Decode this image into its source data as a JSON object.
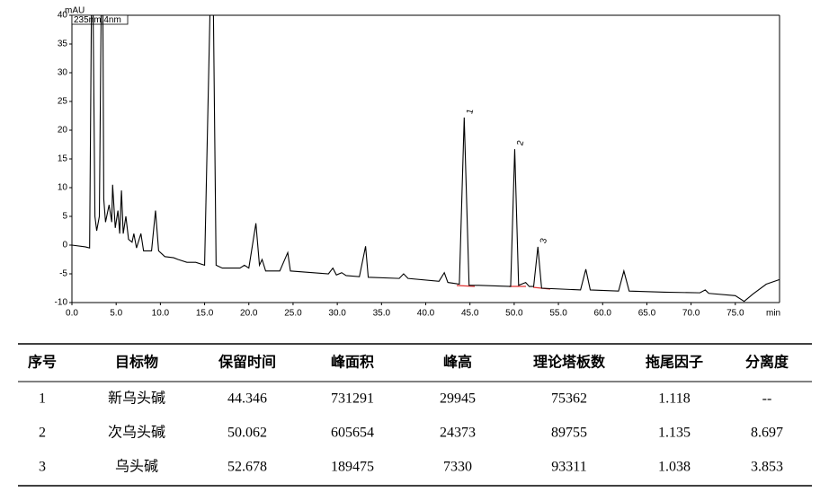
{
  "chart_data": {
    "type": "line",
    "y_label": "mAU",
    "x_label": "min",
    "x": [
      0,
      1.5,
      2.0,
      2.2,
      2.4,
      2.6,
      2.8,
      3.1,
      3.3,
      3.5,
      3.6,
      3.8,
      4.2,
      4.5,
      4.6,
      4.9,
      5.2,
      5.4,
      5.6,
      5.8,
      6.1,
      6.4,
      6.8,
      7.0,
      7.3,
      7.8,
      8.1,
      9.0,
      9.45,
      9.8,
      10.5,
      11.5,
      12.0,
      13.0,
      14.0,
      15.0,
      15.6,
      16.0,
      16.3,
      17.0,
      19.0,
      19.5,
      20.0,
      20.8,
      21.2,
      21.5,
      21.9,
      23.5,
      24.4,
      24.7,
      29.0,
      29.5,
      29.9,
      30.5,
      31.0,
      32.5,
      33.2,
      33.5,
      37.0,
      37.5,
      38.0,
      41.5,
      42.1,
      42.5,
      43.8,
      44.35,
      44.9,
      46.0,
      49.6,
      50.06,
      50.5,
      51.3,
      51.7,
      52.2,
      52.68,
      53.1,
      57.5,
      58.1,
      58.6,
      61.8,
      62.4,
      63.0,
      67.0,
      71.0,
      71.6,
      72.0,
      75.0,
      76.0,
      77.0,
      78.5,
      80.0
    ],
    "series": [
      {
        "name": "235nm,4nm",
        "color": "#000000",
        "values": [
          0,
          -0.3,
          -0.5,
          40,
          40,
          5,
          2.5,
          5,
          40,
          40,
          8,
          4,
          7,
          4,
          10.5,
          3,
          6,
          2,
          9.5,
          2,
          5,
          1,
          0.5,
          2,
          -0.5,
          2,
          -1,
          -1,
          6,
          -1,
          -2,
          -2.2,
          -2.5,
          -3,
          -3,
          -3.5,
          40,
          40,
          -3.5,
          -4,
          -4,
          -3.5,
          -4,
          3.8,
          -3.5,
          -2.5,
          -4.5,
          -4.5,
          -1.3,
          -4.5,
          -5,
          -4,
          -5.2,
          -4.8,
          -5.3,
          -5.5,
          -0.2,
          -5.6,
          -5.8,
          -5,
          -5.8,
          -6.3,
          -4.8,
          -6.5,
          -6.8,
          22.2,
          -7,
          -7,
          -7.2,
          16.7,
          -7,
          -6.5,
          -7.2,
          -7.2,
          -0.3,
          -7.5,
          -7.8,
          -4.2,
          -7.8,
          -8,
          -4.5,
          -8,
          -8.2,
          -8.3,
          -7.8,
          -8.4,
          -8.8,
          -9.8,
          -8.5,
          -6.8,
          -6
        ]
      }
    ],
    "xlim": [
      0,
      80
    ],
    "ylim": [
      -10,
      40
    ],
    "xticks": [
      {
        "value": 0,
        "label": "0.0"
      },
      {
        "value": 5,
        "label": "5.0"
      },
      {
        "value": 10,
        "label": "10.0"
      },
      {
        "value": 15,
        "label": "15.0"
      },
      {
        "value": 20,
        "label": "20.0"
      },
      {
        "value": 25,
        "label": "25.0"
      },
      {
        "value": 30,
        "label": "30.0"
      },
      {
        "value": 35,
        "label": "35.0"
      },
      {
        "value": 40,
        "label": "40.0"
      },
      {
        "value": 45,
        "label": "45.0"
      },
      {
        "value": 50,
        "label": "50.0"
      },
      {
        "value": 55,
        "label": "55.0"
      },
      {
        "value": 60,
        "label": "60.0"
      },
      {
        "value": 65,
        "label": "65.0"
      },
      {
        "value": 70,
        "label": "70.0"
      },
      {
        "value": 75,
        "label": "75.0"
      }
    ],
    "yticks": [
      40,
      35,
      30,
      25,
      20,
      15,
      10,
      5,
      0,
      -5,
      -10
    ],
    "annotations": [
      {
        "label": "1",
        "x": 44.35
      },
      {
        "label": "2",
        "x": 50.06
      },
      {
        "label": "3",
        "x": 52.68
      }
    ]
  },
  "table": {
    "header": [
      "序号",
      "目标物",
      "保留时间",
      "峰面积",
      "峰高",
      "理论塔板数",
      "拖尾因子",
      "分离度"
    ],
    "rows": [
      [
        "1",
        "新乌头碱",
        "44.346",
        "731291",
        "29945",
        "75362",
        "1.118",
        "--"
      ],
      [
        "2",
        "次乌头碱",
        "50.062",
        "605654",
        "24373",
        "89755",
        "1.135",
        "8.697"
      ],
      [
        "3",
        "乌头碱",
        "52.678",
        "189475",
        "7330",
        "93311",
        "1.038",
        "3.853"
      ]
    ]
  }
}
